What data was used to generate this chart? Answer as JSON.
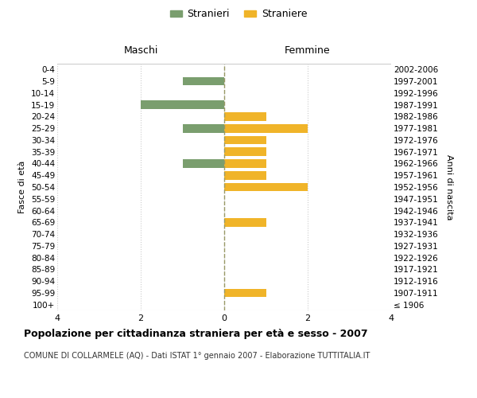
{
  "age_groups": [
    "100+",
    "95-99",
    "90-94",
    "85-89",
    "80-84",
    "75-79",
    "70-74",
    "65-69",
    "60-64",
    "55-59",
    "50-54",
    "45-49",
    "40-44",
    "35-39",
    "30-34",
    "25-29",
    "20-24",
    "15-19",
    "10-14",
    "5-9",
    "0-4"
  ],
  "birth_years": [
    "≤ 1906",
    "1907-1911",
    "1912-1916",
    "1917-1921",
    "1922-1926",
    "1927-1931",
    "1932-1936",
    "1937-1941",
    "1942-1946",
    "1947-1951",
    "1952-1956",
    "1957-1961",
    "1962-1966",
    "1967-1971",
    "1972-1976",
    "1977-1981",
    "1982-1986",
    "1987-1991",
    "1992-1996",
    "1997-2001",
    "2002-2006"
  ],
  "males": [
    0,
    0,
    0,
    0,
    0,
    0,
    0,
    0,
    0,
    0,
    0,
    0,
    -1,
    0,
    0,
    -1,
    0,
    -2,
    0,
    -1,
    0
  ],
  "females": [
    0,
    1,
    0,
    0,
    0,
    0,
    0,
    1,
    0,
    0,
    2,
    1,
    1,
    1,
    1,
    2,
    1,
    0,
    0,
    0,
    0
  ],
  "male_color": "#7a9e6e",
  "female_color": "#f0b429",
  "male_label": "Stranieri",
  "female_label": "Straniere",
  "title": "Popolazione per cittadinanza straniera per età e sesso - 2007",
  "subtitle": "COMUNE DI COLLARMELE (AQ) - Dati ISTAT 1° gennaio 2007 - Elaborazione TUTTITALIA.IT",
  "xlabel_left": "Maschi",
  "xlabel_right": "Femmine",
  "ylabel_left": "Fasce di età",
  "ylabel_right": "Anni di nascita",
  "xlim": [
    -4,
    4
  ],
  "xticks": [
    -4,
    -2,
    0,
    2,
    4
  ],
  "xticklabels": [
    "4",
    "2",
    "0",
    "2",
    "4"
  ],
  "bg_color": "#ffffff",
  "grid_color": "#cccccc"
}
